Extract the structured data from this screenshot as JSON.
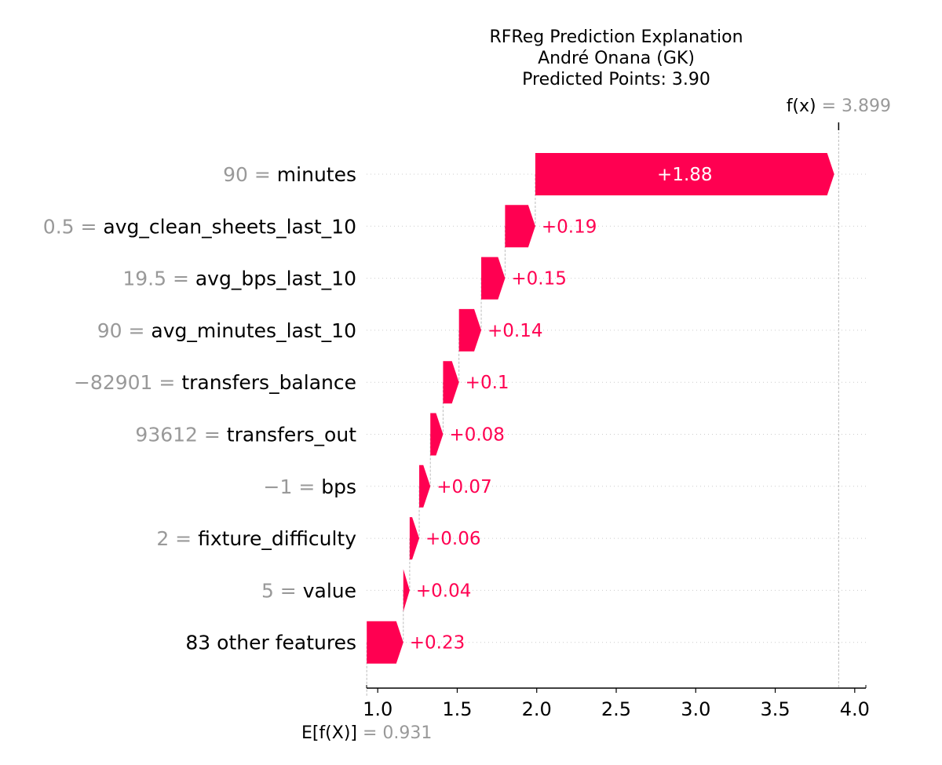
{
  "chart_data": {
    "type": "waterfall",
    "title": [
      "RFReg Prediction Explanation",
      "André Onana (GK)",
      "Predicted Points: 3.90"
    ],
    "base_value": 0.931,
    "base_value_text": "0.931",
    "base_label": "E[f(X)]",
    "final_value": 3.899,
    "final_value_text": "3.899",
    "final_label": "f(x)",
    "xlim": [
      0.93,
      4.07
    ],
    "x_ticks": [
      1.0,
      1.5,
      2.0,
      2.5,
      3.0,
      3.5,
      4.0
    ],
    "x_tick_labels": [
      "1.0",
      "1.5",
      "2.0",
      "2.5",
      "3.0",
      "3.5",
      "4.0"
    ],
    "bar_color": "#ff0051",
    "label_color_outside": "#ff0051",
    "label_color_inside": "#ffffff",
    "features": [
      {
        "value": "90",
        "name": "minutes",
        "contribution": 1.88,
        "label": "+1.88"
      },
      {
        "value": "0.5",
        "name": "avg_clean_sheets_last_10",
        "contribution": 0.19,
        "label": "+0.19"
      },
      {
        "value": "19.5",
        "name": "avg_bps_last_10",
        "contribution": 0.15,
        "label": "+0.15"
      },
      {
        "value": "90",
        "name": "avg_minutes_last_10",
        "contribution": 0.14,
        "label": "+0.14"
      },
      {
        "value": "−82901",
        "name": "transfers_balance",
        "contribution": 0.1,
        "label": "+0.1"
      },
      {
        "value": "93612",
        "name": "transfers_out",
        "contribution": 0.08,
        "label": "+0.08"
      },
      {
        "value": "−1",
        "name": "bps",
        "contribution": 0.07,
        "label": "+0.07"
      },
      {
        "value": "2",
        "name": "fixture_difficulty",
        "contribution": 0.06,
        "label": "+0.06"
      },
      {
        "value": "5",
        "name": "value",
        "contribution": 0.04,
        "label": "+0.04"
      },
      {
        "value": "",
        "name": "83 other features",
        "contribution": 0.23,
        "label": "+0.23"
      }
    ]
  }
}
